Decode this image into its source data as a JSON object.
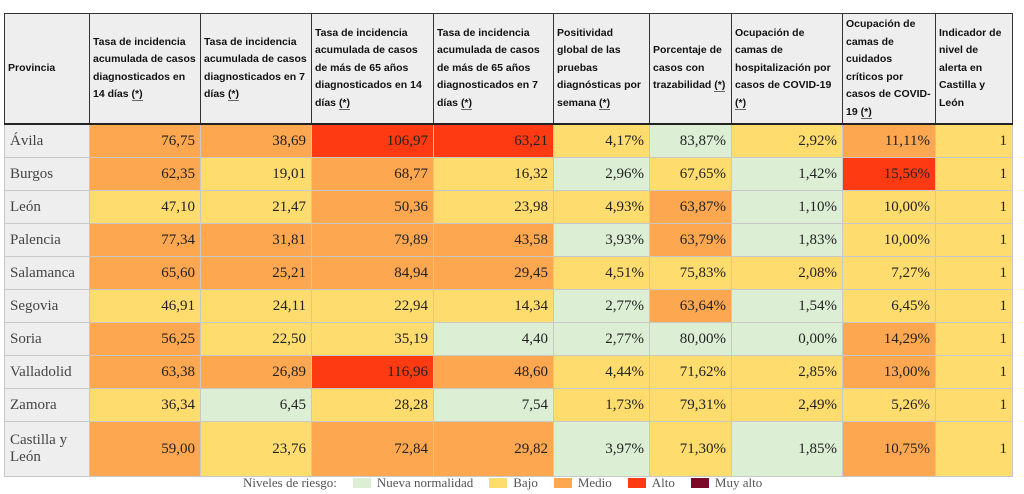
{
  "headers": [
    "Provincia",
    "Tasa de incidencia acumulada de casos diagnosticados en 14 días",
    "Tasa de incidencia acumulada de casos diagnosticados en 7 días",
    "Tasa de incidencia acumulada de casos de más de 65 años diagnosticados en 14 días",
    "Tasa de incidencia acumulada de casos de más de 65 años diagnosticados en 7 días",
    "Positividad global de las pruebas diagnósticas por semana",
    "Porcentaje de casos con trazabilidad",
    "Ocupación de camas de hospitalización por casos de COVID-19",
    "Ocupación de camas de cuidados críticos por casos de COVID-19",
    "Indicador de nivel de alerta en Castilla y León"
  ],
  "header_note": "(*)",
  "header_has_note": [
    false,
    true,
    true,
    true,
    true,
    true,
    true,
    true,
    true,
    false
  ],
  "rows": [
    {
      "provincia": "Ávila",
      "values": [
        "76,75",
        "38,69",
        "106,97",
        "63,21",
        "4,17%",
        "83,87%",
        "2,92%",
        "11,11%",
        "1"
      ],
      "levels": [
        "o",
        "o",
        "r",
        "r",
        "y",
        "g",
        "y",
        "o",
        "y"
      ]
    },
    {
      "provincia": "Burgos",
      "values": [
        "62,35",
        "19,01",
        "68,77",
        "16,32",
        "2,96%",
        "67,65%",
        "1,42%",
        "15,56%",
        "1"
      ],
      "levels": [
        "o",
        "y",
        "o",
        "y",
        "g",
        "y",
        "g",
        "r",
        "y"
      ]
    },
    {
      "provincia": "León",
      "values": [
        "47,10",
        "21,47",
        "50,36",
        "23,98",
        "4,93%",
        "63,87%",
        "1,10%",
        "10,00%",
        "1"
      ],
      "levels": [
        "y",
        "y",
        "o",
        "y",
        "y",
        "o",
        "g",
        "y",
        "y"
      ]
    },
    {
      "provincia": "Palencia",
      "values": [
        "77,34",
        "31,81",
        "79,89",
        "43,58",
        "3,93%",
        "63,79%",
        "1,83%",
        "10,00%",
        "1"
      ],
      "levels": [
        "o",
        "o",
        "o",
        "o",
        "g",
        "o",
        "g",
        "y",
        "y"
      ]
    },
    {
      "provincia": "Salamanca",
      "values": [
        "65,60",
        "25,21",
        "84,94",
        "29,45",
        "4,51%",
        "75,83%",
        "2,08%",
        "7,27%",
        "1"
      ],
      "levels": [
        "o",
        "o",
        "o",
        "o",
        "y",
        "y",
        "y",
        "y",
        "y"
      ]
    },
    {
      "provincia": "Segovia",
      "values": [
        "46,91",
        "24,11",
        "22,94",
        "14,34",
        "2,77%",
        "63,64%",
        "1,54%",
        "6,45%",
        "1"
      ],
      "levels": [
        "y",
        "y",
        "y",
        "y",
        "g",
        "o",
        "g",
        "y",
        "y"
      ]
    },
    {
      "provincia": "Soria",
      "values": [
        "56,25",
        "22,50",
        "35,19",
        "4,40",
        "2,77%",
        "80,00%",
        "0,00%",
        "14,29%",
        "1"
      ],
      "levels": [
        "o",
        "y",
        "y",
        "g",
        "g",
        "g",
        "g",
        "o",
        "y"
      ]
    },
    {
      "provincia": "Valladolid",
      "values": [
        "63,38",
        "26,89",
        "116,96",
        "48,60",
        "4,44%",
        "71,62%",
        "2,85%",
        "13,00%",
        "1"
      ],
      "levels": [
        "o",
        "o",
        "r",
        "o",
        "y",
        "y",
        "y",
        "o",
        "y"
      ]
    },
    {
      "provincia": "Zamora",
      "values": [
        "36,34",
        "6,45",
        "28,28",
        "7,54",
        "1,73%",
        "79,31%",
        "2,49%",
        "5,26%",
        "1"
      ],
      "levels": [
        "y",
        "g",
        "y",
        "g",
        "y",
        "y",
        "y",
        "y",
        "y"
      ]
    },
    {
      "provincia": "Castilla y León",
      "values": [
        "59,00",
        "23,76",
        "72,84",
        "29,82",
        "3,97%",
        "71,30%",
        "1,85%",
        "10,75%",
        "1"
      ],
      "levels": [
        "o",
        "y",
        "o",
        "o",
        "g",
        "y",
        "g",
        "o",
        "y"
      ]
    }
  ],
  "legend": {
    "title": "Niveles de riesgo:",
    "items": [
      {
        "key": "g",
        "label": "Nueva normalidad",
        "color": "#dcefd5"
      },
      {
        "key": "y",
        "label": "Bajo",
        "color": "#fedc6e"
      },
      {
        "key": "o",
        "label": "Medio",
        "color": "#fda850"
      },
      {
        "key": "r",
        "label": "Alto",
        "color": "#fd3a12"
      },
      {
        "key": "m",
        "label": "Muy alto",
        "color": "#7a0a27"
      }
    ]
  }
}
